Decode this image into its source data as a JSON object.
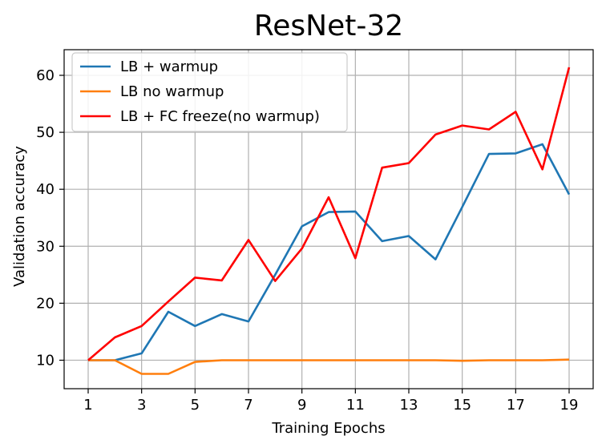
{
  "chart_data": {
    "type": "line",
    "title": "ResNet-32",
    "xlabel": "Training Epochs",
    "ylabel": "Validation accuracy",
    "xlim": [
      0.1,
      19.9
    ],
    "ylim": [
      5,
      64.5
    ],
    "xticks": [
      1,
      3,
      5,
      7,
      9,
      11,
      13,
      15,
      17,
      19
    ],
    "yticks": [
      10,
      20,
      30,
      40,
      50,
      60
    ],
    "grid": true,
    "legend_position": "top-left",
    "x": [
      1,
      2,
      3,
      4,
      5,
      6,
      7,
      8,
      9,
      10,
      11,
      12,
      13,
      14,
      15,
      16,
      17,
      18,
      19
    ],
    "series": [
      {
        "name": "LB + warmup",
        "color": "#1f77b4",
        "values": [
          10.0,
          10.0,
          11.2,
          18.5,
          16.0,
          18.1,
          16.8,
          25.0,
          33.5,
          36.0,
          36.1,
          30.9,
          31.8,
          27.7,
          36.9,
          46.2,
          46.3,
          47.9,
          39.1
        ]
      },
      {
        "name": "LB no warmup",
        "color": "#ff7f0e",
        "values": [
          10.0,
          10.0,
          7.6,
          7.6,
          9.7,
          10.0,
          10.0,
          10.0,
          10.0,
          10.0,
          10.0,
          10.0,
          10.0,
          10.0,
          9.9,
          10.0,
          10.0,
          10.0,
          10.1
        ]
      },
      {
        "name": "LB + FC freeze(no warmup)",
        "color": "#ff0000",
        "values": [
          10.0,
          14.0,
          16.0,
          20.3,
          24.5,
          24.0,
          31.1,
          23.9,
          29.6,
          38.6,
          27.9,
          43.8,
          44.6,
          49.6,
          51.2,
          50.5,
          53.6,
          43.5,
          61.4
        ]
      }
    ]
  }
}
